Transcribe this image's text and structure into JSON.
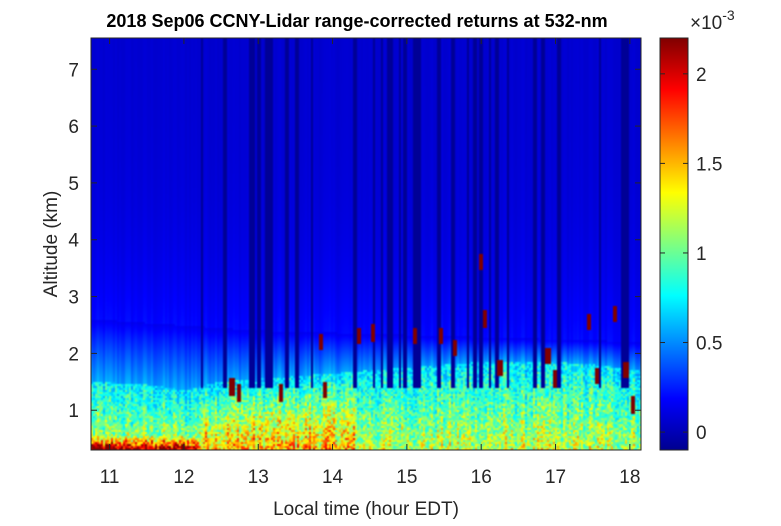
{
  "chart_data": {
    "type": "heatmap",
    "title": "2018 Sep06 CCNY-Lidar range-corrected returns at 532-nm",
    "xlabel": "Local time (hour EDT)",
    "ylabel": "Altitude (km)",
    "xlim": [
      10.75,
      18.15
    ],
    "ylim": [
      0.3,
      7.55
    ],
    "x_ticks": [
      "11",
      "12",
      "13",
      "14",
      "15",
      "16",
      "17",
      "18"
    ],
    "x_tick_values": [
      11,
      12,
      13,
      14,
      15,
      16,
      17,
      18
    ],
    "y_ticks": [
      "1",
      "2",
      "3",
      "4",
      "5",
      "6",
      "7"
    ],
    "y_tick_values": [
      1,
      2,
      3,
      4,
      5,
      6,
      7
    ],
    "colorbar": {
      "colormap": "jet",
      "lim": [
        -0.0001,
        0.0022
      ],
      "multiplier_label": "×10",
      "multiplier_exponent": "-3",
      "tick_labels": [
        "0",
        "0.5",
        "1",
        "1.5",
        "2"
      ],
      "tick_values": [
        0,
        0.0005,
        0.001,
        0.0015,
        0.002
      ]
    },
    "background_level": 8e-05,
    "boundary_layer_top_km": [
      [
        10.75,
        1.5
      ],
      [
        11.5,
        1.45
      ],
      [
        12.0,
        1.35
      ],
      [
        12.5,
        1.5
      ],
      [
        13.0,
        1.55
      ],
      [
        13.5,
        1.6
      ],
      [
        14.0,
        1.65
      ],
      [
        14.5,
        1.7
      ],
      [
        15.0,
        1.75
      ],
      [
        15.5,
        1.8
      ],
      [
        16.0,
        1.85
      ],
      [
        16.5,
        1.85
      ],
      [
        17.0,
        1.85
      ],
      [
        17.5,
        1.8
      ],
      [
        18.15,
        1.7
      ]
    ],
    "aerosol_layer_km": [
      [
        10.75,
        2.6
      ],
      [
        13.0,
        2.4
      ],
      [
        18.15,
        2.2
      ]
    ],
    "cloud_returns": [
      {
        "time": 12.65,
        "altitude_km": 1.4
      },
      {
        "time": 12.75,
        "altitude_km": 1.3
      },
      {
        "time": 13.3,
        "altitude_km": 1.3
      },
      {
        "time": 13.85,
        "altitude_km": 2.2
      },
      {
        "time": 13.9,
        "altitude_km": 1.35
      },
      {
        "time": 14.35,
        "altitude_km": 2.3
      },
      {
        "time": 14.55,
        "altitude_km": 2.35
      },
      {
        "time": 15.1,
        "altitude_km": 2.3
      },
      {
        "time": 15.45,
        "altitude_km": 2.3
      },
      {
        "time": 15.65,
        "altitude_km": 2.1
      },
      {
        "time": 16.0,
        "altitude_km": 3.6
      },
      {
        "time": 16.05,
        "altitude_km": 2.6
      },
      {
        "time": 16.25,
        "altitude_km": 1.75
      },
      {
        "time": 16.9,
        "altitude_km": 1.95
      },
      {
        "time": 17.0,
        "altitude_km": 1.55
      },
      {
        "time": 17.45,
        "altitude_km": 2.55
      },
      {
        "time": 17.55,
        "altitude_km": 1.6
      },
      {
        "time": 17.8,
        "altitude_km": 2.7
      },
      {
        "time": 17.95,
        "altitude_km": 1.7
      },
      {
        "time": 18.05,
        "altitude_km": 1.1
      }
    ]
  }
}
